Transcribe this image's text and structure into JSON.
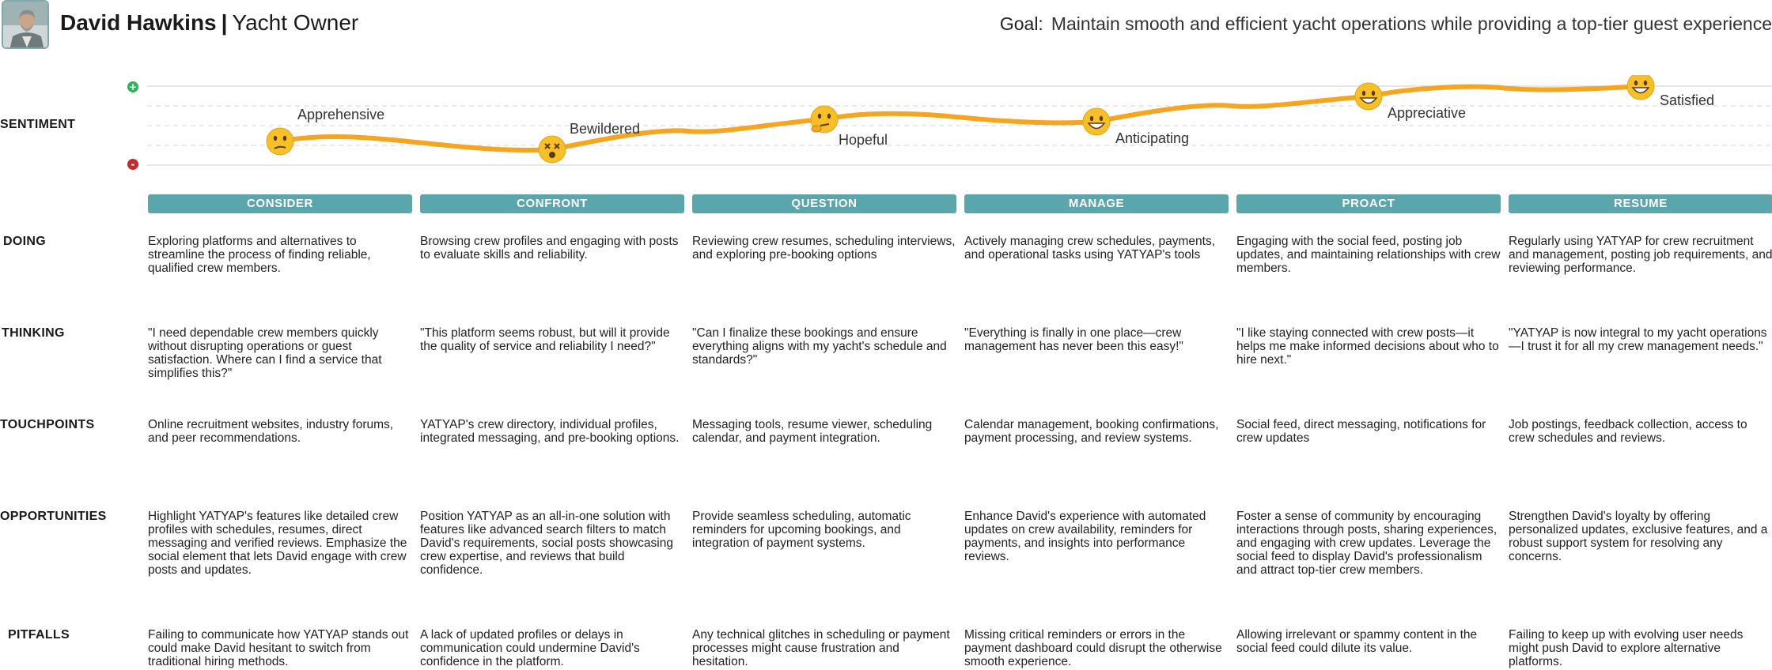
{
  "persona": {
    "name": "David Hawkins",
    "separator": "|",
    "role": "Yacht Owner",
    "goal_label": "Goal:",
    "goal": "Maintain smooth and efficient yacht operations while providing a top-tier guest experience"
  },
  "sentiment": {
    "label": "SENTIMENT",
    "plus": "+",
    "minus": "-",
    "points": [
      {
        "label": "Apprehensive",
        "emoji": "confused-face",
        "level": 0.3
      },
      {
        "label": "Bewildered",
        "emoji": "dizzy-face",
        "level": 0.2
      },
      {
        "label": "Hopeful",
        "emoji": "thinking-face",
        "level": 0.58
      },
      {
        "label": "Anticipating",
        "emoji": "grinning-face",
        "level": 0.55
      },
      {
        "label": "Appreciative",
        "emoji": "grinning-face",
        "level": 0.87
      },
      {
        "label": "Satisfied",
        "emoji": "grinning-face",
        "level": 1.0
      }
    ]
  },
  "stages": [
    "CONSIDER",
    "CONFRONT",
    "QUESTION",
    "MANAGE",
    "PROACT",
    "RESUME"
  ],
  "rows": [
    {
      "label": "DOING",
      "cells": [
        "Exploring platforms and alternatives to streamline the process of finding reliable, qualified crew members.",
        "Browsing crew profiles and engaging with posts to evaluate skills and reliability.",
        "Reviewing crew resumes, scheduling interviews, and exploring pre-booking options",
        "Actively managing crew schedules, payments, and operational tasks using YATYAP's tools",
        "Engaging with the social feed, posting job updates, and maintaining relationships with crew members.",
        "Regularly using YATYAP for crew recruitment and management, posting job requirements, and reviewing performance."
      ]
    },
    {
      "label": "THINKING",
      "cells": [
        "\"I need dependable crew members quickly without disrupting operations or guest satisfaction. Where can I find a service that simplifies this?\"",
        "\"This platform seems robust, but will it provide the quality of service and reliability I need?\"",
        "\"Can I finalize these bookings and ensure everything aligns with my yacht's schedule and standards?\"",
        "\"Everything is finally in one place—crew management has never been this easy!\"",
        "\"I like staying connected with crew posts—it helps me make informed decisions about who to hire next.\"",
        "\"YATYAP is now integral to my yacht operations—I trust it for all my crew management needs.\""
      ]
    },
    {
      "label": "TOUCHPOINTS",
      "cells": [
        "Online recruitment websites, industry forums, and peer recommendations.",
        "YATYAP's crew directory, individual profiles, integrated messaging, and pre-booking options.",
        "Messaging tools, resume viewer, scheduling calendar, and payment integration.",
        "Calendar management, booking confirmations, payment processing, and review systems.",
        "Social feed, direct messaging, notifications for crew updates",
        "Job postings, feedback collection, access to crew schedules and reviews."
      ]
    },
    {
      "label": "OPPORTUNITIES",
      "cells": [
        "Highlight YATYAP's features like detailed crew profiles with schedules, resumes, direct messaging and verified reviews. Emphasize the social element that lets David engage with crew posts and updates.",
        "Position YATYAP as an all-in-one solution with features like advanced search filters to match David's requirements, social posts showcasing crew expertise, and reviews that build confidence.",
        "Provide seamless scheduling, automatic reminders for upcoming bookings, and integration of payment systems.",
        "Enhance David's experience with automated updates on crew availability, reminders for payments, and insights into performance reviews.",
        "Foster a sense of community by encouraging interactions through posts, sharing experiences, and engaging with crew updates. Leverage the social feed to display David's professionalism and attract top-tier crew members.",
        "Strengthen David's loyalty by offering personalized updates, exclusive features, and a robust support system for resolving any concerns."
      ]
    },
    {
      "label": "PITFALLS",
      "cells": [
        "Failing to communicate how YATYAP stands out could make David hesitant to switch from traditional hiring methods.",
        "A lack of updated profiles or delays in communication could undermine David's confidence in the platform.",
        "Any technical glitches in scheduling or payment processes might cause frustration and hesitation.",
        "Missing critical reminders or errors in the payment dashboard could disrupt the otherwise smooth experience.",
        "Allowing irrelevant or spammy content in the social feed could dilute its value.",
        "Failing to keep up with evolving user needs might push David to explore alternative platforms."
      ]
    }
  ],
  "colors": {
    "stage_bg": "#5ba6ad",
    "curve": "#f5a51f",
    "positive": "#2fb35a",
    "negative": "#c22b2b",
    "emoji": "#f7c02a"
  }
}
